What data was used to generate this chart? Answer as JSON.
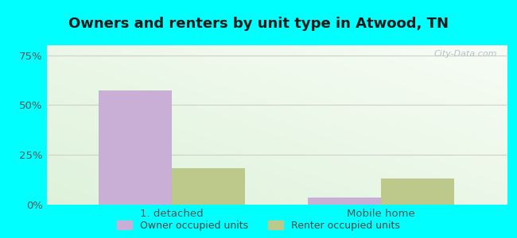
{
  "title": "Owners and renters by unit type in Atwood, TN",
  "categories": [
    "1. detached",
    "Mobile home"
  ],
  "owner_values": [
    57.5,
    3.5
  ],
  "renter_values": [
    18.5,
    13.0
  ],
  "owner_color": "#c9aed6",
  "renter_color": "#bdc98a",
  "yticks": [
    0,
    25,
    50,
    75
  ],
  "ytick_labels": [
    "0%",
    "25%",
    "50%",
    "75%"
  ],
  "ylim": [
    0,
    80
  ],
  "bar_width": 0.35,
  "outer_bg": "#00ffff",
  "watermark": "City-Data.com",
  "legend_labels": [
    "Owner occupied units",
    "Renter occupied units"
  ],
  "title_fontsize": 13,
  "axis_label_fontsize": 9.5,
  "legend_fontsize": 9
}
